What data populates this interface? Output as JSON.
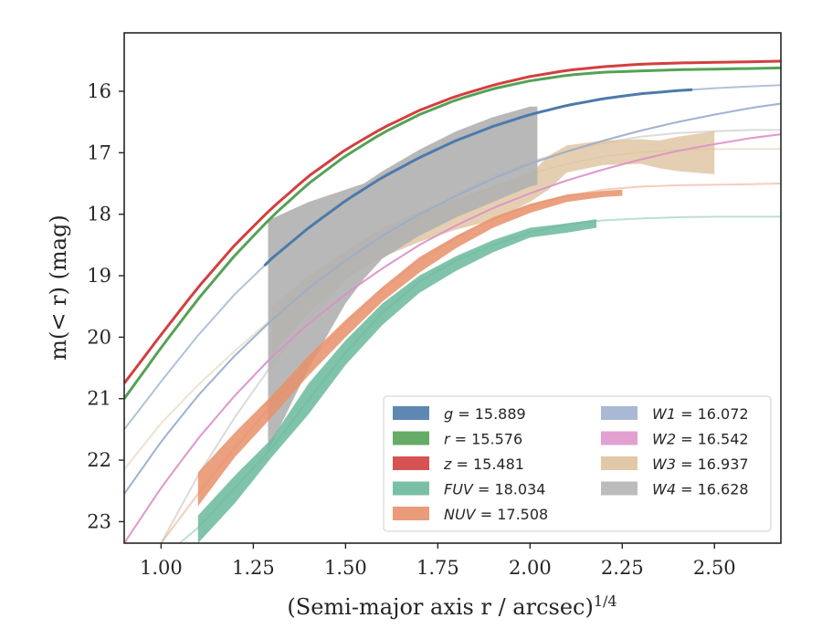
{
  "chart_data": {
    "type": "line",
    "title": "",
    "xlabel": "(Semi-major axis r / arcsec)",
    "xlabel_exponent": "1/4",
    "ylabel": "m(< r) (mag)",
    "xlim": [
      0.9,
      2.68
    ],
    "ylim": [
      23.35,
      15.05
    ],
    "y_inverted": true,
    "grid": false,
    "legend_position": "lower-right",
    "x_ticks": [
      "1.00",
      "1.25",
      "1.50",
      "1.75",
      "2.00",
      "2.25",
      "2.50"
    ],
    "x_tick_values": [
      1.0,
      1.25,
      1.5,
      1.75,
      2.0,
      2.25,
      2.5
    ],
    "y_ticks": [
      "16",
      "17",
      "18",
      "19",
      "20",
      "21",
      "22",
      "23"
    ],
    "y_tick_values": [
      16,
      17,
      18,
      19,
      20,
      21,
      22,
      23
    ],
    "series": [
      {
        "key": "g",
        "name": "g = 15.889",
        "name_math": "g",
        "value_text": " = 15.889",
        "color": "#4c7aab",
        "band_color": "#4c7aab",
        "fit_line": {
          "x": [
            0.9,
            1.0,
            1.1,
            1.2,
            1.3,
            1.4,
            1.5,
            1.6,
            1.7,
            1.8,
            1.9,
            2.0,
            2.1,
            2.2,
            2.3,
            2.4,
            2.5,
            2.6,
            2.68
          ],
          "y": [
            21.5,
            20.72,
            19.97,
            19.3,
            18.72,
            18.22,
            17.78,
            17.4,
            17.08,
            16.8,
            16.57,
            16.38,
            16.23,
            16.12,
            16.04,
            15.99,
            15.95,
            15.92,
            15.9
          ]
        },
        "data_range": [
          1.28,
          2.44
        ],
        "thickness": 3
      },
      {
        "key": "r",
        "name": "r = 15.576",
        "name_math": "r",
        "value_text": " = 15.576",
        "color": "#55a255",
        "band_color": "#55a255",
        "fit_line": {
          "x": [
            0.9,
            1.0,
            1.1,
            1.2,
            1.3,
            1.4,
            1.5,
            1.6,
            1.7,
            1.8,
            1.9,
            2.0,
            2.1,
            2.2,
            2.3,
            2.4,
            2.5,
            2.6,
            2.68
          ],
          "y": [
            21.0,
            20.17,
            19.38,
            18.67,
            18.04,
            17.5,
            17.05,
            16.68,
            16.38,
            16.14,
            15.96,
            15.83,
            15.74,
            15.69,
            15.67,
            15.65,
            15.64,
            15.63,
            15.62
          ]
        },
        "data_range": [
          0.9,
          2.68
        ],
        "thickness": 3
      },
      {
        "key": "z",
        "name": "z = 15.481",
        "name_math": "z",
        "value_text": " = 15.481",
        "color": "#d33f3f",
        "band_color": "#d33f3f",
        "fit_line": {
          "x": [
            0.9,
            1.0,
            1.1,
            1.2,
            1.3,
            1.4,
            1.5,
            1.6,
            1.7,
            1.8,
            1.9,
            2.0,
            2.1,
            2.2,
            2.3,
            2.4,
            2.5,
            2.6,
            2.68
          ],
          "y": [
            20.75,
            19.96,
            19.19,
            18.5,
            17.9,
            17.38,
            16.95,
            16.6,
            16.31,
            16.08,
            15.9,
            15.76,
            15.66,
            15.6,
            15.56,
            15.54,
            15.53,
            15.52,
            15.51
          ]
        },
        "data_range": [
          0.9,
          2.68
        ],
        "thickness": 3
      },
      {
        "key": "FUV",
        "name": "FUV = 18.034",
        "name_math": "FUV",
        "value_text": " = 18.034",
        "color": "#6ab89c",
        "band_color": "#6ab89c",
        "fit_line": {
          "x": [
            1.05,
            1.1,
            1.2,
            1.3,
            1.4,
            1.5,
            1.6,
            1.7,
            1.8,
            1.9,
            2.0,
            2.1,
            2.2,
            2.3,
            2.4,
            2.5,
            2.6,
            2.68
          ],
          "y": [
            23.35,
            23.1,
            22.45,
            21.8,
            21.02,
            20.25,
            19.6,
            19.1,
            18.75,
            18.5,
            18.3,
            18.16,
            18.1,
            18.07,
            18.05,
            18.04,
            18.04,
            18.04
          ]
        },
        "band": {
          "x": [
            1.1,
            1.2,
            1.3,
            1.4,
            1.5,
            1.6,
            1.7,
            1.8,
            1.9,
            2.0,
            2.1,
            2.18
          ],
          "y_low": [
            22.9,
            22.25,
            21.65,
            20.75,
            20.05,
            19.45,
            19.0,
            18.68,
            18.42,
            18.22,
            18.15,
            18.08
          ],
          "y_high": [
            23.35,
            22.7,
            21.95,
            21.25,
            20.45,
            19.8,
            19.28,
            18.92,
            18.62,
            18.38,
            18.3,
            18.22
          ]
        }
      },
      {
        "key": "NUV",
        "name": "NUV = 17.508",
        "name_math": "NUV",
        "value_text": " = 17.508",
        "color": "#e8906a",
        "band_color": "#e8906a",
        "fit_line": {
          "x": [
            1.0,
            1.1,
            1.2,
            1.3,
            1.4,
            1.5,
            1.6,
            1.7,
            1.8,
            1.9,
            2.0,
            2.1,
            2.2,
            2.3,
            2.4,
            2.5,
            2.6,
            2.68
          ],
          "y": [
            23.35,
            22.55,
            21.8,
            21.1,
            20.4,
            19.78,
            19.22,
            18.75,
            18.38,
            18.08,
            17.86,
            17.7,
            17.6,
            17.55,
            17.53,
            17.52,
            17.51,
            17.5
          ]
        },
        "band": {
          "x": [
            1.1,
            1.2,
            1.3,
            1.4,
            1.5,
            1.6,
            1.7,
            1.8,
            1.9,
            2.0,
            2.1,
            2.2,
            2.25
          ],
          "y_low": [
            22.2,
            21.55,
            20.95,
            20.3,
            19.72,
            19.18,
            18.7,
            18.35,
            18.05,
            17.83,
            17.68,
            17.62,
            17.6
          ],
          "y_high": [
            22.75,
            21.95,
            21.3,
            20.62,
            20.0,
            19.42,
            18.95,
            18.55,
            18.22,
            17.98,
            17.8,
            17.72,
            17.7
          ]
        }
      },
      {
        "key": "W1",
        "name": "W1 = 16.072",
        "name_math": "W1",
        "value_text": " = 16.072",
        "color": "#9aabcc",
        "band_color": "#9aabcc",
        "fit_line": {
          "x": [
            0.9,
            1.0,
            1.1,
            1.2,
            1.3,
            1.4,
            1.5,
            1.6,
            1.7,
            1.8,
            1.9,
            2.0,
            2.1,
            2.2,
            2.3,
            2.4,
            2.5,
            2.6,
            2.68
          ],
          "y": [
            22.55,
            21.7,
            20.95,
            20.3,
            19.72,
            19.2,
            18.75,
            18.35,
            18.0,
            17.7,
            17.42,
            17.18,
            16.98,
            16.8,
            16.64,
            16.5,
            16.38,
            16.27,
            16.2
          ]
        },
        "data_range": [
          0.9,
          2.68
        ],
        "thickness": 2
      },
      {
        "key": "W2",
        "name": "W2 = 16.542",
        "name_math": "W2",
        "value_text": " = 16.542",
        "color": "#dd8fc8",
        "band_color": "#dd8fc8",
        "fit_line": {
          "x": [
            0.9,
            1.0,
            1.1,
            1.2,
            1.3,
            1.4,
            1.5,
            1.6,
            1.7,
            1.8,
            1.9,
            2.0,
            2.1,
            2.2,
            2.3,
            2.4,
            2.5,
            2.6,
            2.68
          ],
          "y": [
            23.35,
            22.45,
            21.65,
            20.95,
            20.32,
            19.78,
            19.3,
            18.88,
            18.5,
            18.18,
            17.9,
            17.66,
            17.45,
            17.27,
            17.11,
            16.97,
            16.86,
            16.76,
            16.7
          ]
        },
        "data_range": [
          0.9,
          2.68
        ],
        "thickness": 2
      },
      {
        "key": "W3",
        "name": "W3 = 16.937",
        "name_math": "W3",
        "value_text": " = 16.937",
        "color": "#dcbf98",
        "band_color": "#dcbf98",
        "fit_line": {
          "x": [
            0.9,
            1.0,
            1.1,
            1.2,
            1.3,
            1.4,
            1.5,
            1.6,
            1.7,
            1.8,
            1.9,
            2.0,
            2.1,
            2.2,
            2.3,
            2.4,
            2.5,
            2.6,
            2.68
          ],
          "y": [
            22.15,
            21.4,
            20.78,
            20.22,
            19.7,
            19.22,
            18.8,
            18.42,
            18.08,
            17.8,
            17.55,
            17.34,
            17.18,
            17.06,
            16.99,
            16.96,
            16.94,
            16.94,
            16.94
          ]
        },
        "band": {
          "x": [
            1.3,
            1.4,
            1.5,
            1.6,
            1.7,
            1.8,
            1.9,
            2.0,
            2.05,
            2.1,
            2.2,
            2.3,
            2.35,
            2.4,
            2.5
          ],
          "y_low": [
            19.5,
            19.0,
            18.6,
            18.22,
            17.95,
            17.75,
            17.55,
            17.35,
            17.05,
            16.88,
            16.8,
            16.78,
            16.8,
            16.74,
            16.65
          ],
          "y_high": [
            20.3,
            19.62,
            19.05,
            18.7,
            18.45,
            18.25,
            18.1,
            17.8,
            17.6,
            17.32,
            17.2,
            17.18,
            17.25,
            17.3,
            17.35
          ]
        }
      },
      {
        "key": "W4",
        "name": "W4 = 16.628",
        "name_math": "W4",
        "value_text": " = 16.628",
        "color": "#b0b0b0",
        "band_color": "#b0b0b0",
        "fit_line": {
          "x": [
            1.0,
            1.1,
            1.2,
            1.3,
            1.4,
            1.5,
            1.6,
            1.7,
            1.8,
            1.9,
            2.0,
            2.1,
            2.2,
            2.3,
            2.4,
            2.5,
            2.6,
            2.68
          ],
          "y": [
            23.35,
            22.25,
            21.3,
            20.45,
            19.7,
            19.05,
            18.5,
            18.05,
            17.68,
            17.38,
            17.15,
            16.97,
            16.84,
            16.74,
            16.68,
            16.65,
            16.63,
            16.63
          ]
        },
        "band": {
          "x": [
            1.29,
            1.4,
            1.5,
            1.55,
            1.6,
            1.7,
            1.8,
            1.9,
            2.0,
            2.02
          ],
          "y_low": [
            18.1,
            17.8,
            17.6,
            17.5,
            17.3,
            16.95,
            16.65,
            16.42,
            16.25,
            16.25
          ],
          "y_high": [
            21.85,
            20.5,
            19.45,
            19.05,
            18.72,
            18.35,
            18.05,
            17.8,
            17.55,
            17.52
          ]
        }
      }
    ],
    "legend": {
      "columns": 2,
      "left": [
        "g",
        "r",
        "z",
        "FUV",
        "NUV"
      ],
      "right": [
        "W1",
        "W2",
        "W3",
        "W4"
      ]
    }
  }
}
